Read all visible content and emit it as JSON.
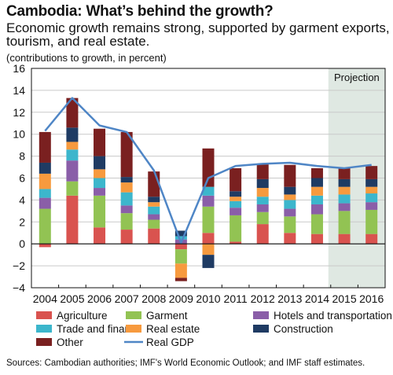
{
  "title": "Cambodia: What’s behind the growth?",
  "subtitle": "Economic growth remains strong, supported by garment exports, tourism, and real estate.",
  "unit_note": "(contributions to growth, in percent)",
  "source": "Sources: Cambodian authorities; IMF's World Economic Outlook; and IMF staff estimates.",
  "chart_data": {
    "type": "bar",
    "stacked": true,
    "categories": [
      "2004",
      "2005",
      "2006",
      "2007",
      "2008",
      "2009",
      "2010",
      "2011",
      "2012",
      "2013",
      "2014",
      "2015",
      "2016"
    ],
    "ylim": [
      -4,
      16
    ],
    "yticks": [
      -4,
      -2,
      0,
      2,
      4,
      6,
      8,
      10,
      12,
      14,
      16
    ],
    "projection": {
      "label": "Projection",
      "from": "2015",
      "to": "2016",
      "color": "#dfe8e2"
    },
    "legend_position": "bottom",
    "series": [
      {
        "name": "Agriculture",
        "color": "#d9534f",
        "values": [
          -0.3,
          4.4,
          1.5,
          1.3,
          1.4,
          -0.5,
          1.0,
          0.2,
          1.8,
          1.0,
          0.9,
          0.9,
          0.9
        ]
      },
      {
        "name": "Garment",
        "color": "#92c353",
        "values": [
          3.2,
          1.3,
          2.9,
          1.5,
          0.8,
          -1.3,
          2.4,
          2.4,
          1.1,
          1.5,
          1.8,
          2.1,
          2.2
        ]
      },
      {
        "name": "Hotels and transportation",
        "color": "#8a5ea8",
        "values": [
          1.0,
          1.9,
          0.7,
          0.7,
          0.5,
          0.4,
          1.0,
          0.7,
          0.7,
          0.7,
          0.9,
          0.7,
          0.7
        ]
      },
      {
        "name": "Trade and finance",
        "color": "#3cb6cc",
        "values": [
          0.8,
          1.0,
          0.9,
          1.2,
          0.7,
          0.3,
          0.8,
          0.6,
          0.7,
          0.8,
          0.8,
          0.8,
          0.8
        ]
      },
      {
        "name": "Real estate",
        "color": "#f79a3e",
        "values": [
          1.4,
          0.7,
          0.8,
          0.9,
          0.4,
          -1.3,
          -1.0,
          0.4,
          0.8,
          0.5,
          0.8,
          0.7,
          0.6
        ]
      },
      {
        "name": "Construction",
        "color": "#1f3b63",
        "values": [
          1.0,
          1.3,
          1.2,
          0.5,
          0.5,
          0.5,
          -1.2,
          0.5,
          0.8,
          0.7,
          0.8,
          0.7,
          0.7
        ]
      },
      {
        "name": "Other",
        "color": "#7a2020",
        "values": [
          2.8,
          2.7,
          2.5,
          4.1,
          2.3,
          -0.3,
          3.5,
          2.1,
          1.4,
          2.0,
          0.9,
          1.0,
          1.2
        ]
      },
      {
        "name": "Real GDP",
        "type": "line",
        "color": "#4f86c6",
        "values": [
          10.3,
          13.3,
          10.8,
          10.2,
          6.7,
          0.1,
          6.0,
          7.1,
          7.3,
          7.4,
          7.1,
          6.9,
          7.2
        ]
      }
    ]
  }
}
